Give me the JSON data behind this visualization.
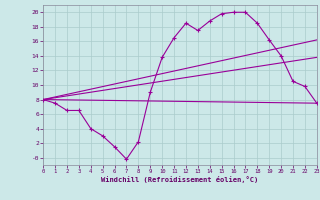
{
  "xlabel": "Windchill (Refroidissement éolien,°C)",
  "bg_color": "#cce8e8",
  "line_color": "#990099",
  "grid_color": "#aacccc",
  "xlim": [
    0,
    23
  ],
  "ylim": [
    -1,
    21
  ],
  "xticks": [
    0,
    1,
    2,
    3,
    4,
    5,
    6,
    7,
    8,
    9,
    10,
    11,
    12,
    13,
    14,
    15,
    16,
    17,
    18,
    19,
    20,
    21,
    22,
    23
  ],
  "yticks": [
    0,
    2,
    4,
    6,
    8,
    10,
    12,
    14,
    16,
    18,
    20
  ],
  "ytick_labels": [
    "-0",
    "2",
    "4",
    "6",
    "8",
    "10",
    "12",
    "14",
    "16",
    "18",
    "20"
  ],
  "line1_x": [
    0,
    1,
    2,
    3,
    4,
    5,
    6,
    7,
    8,
    9,
    10,
    11,
    12,
    13,
    14,
    15,
    16,
    17,
    18,
    19,
    20,
    21,
    22,
    23
  ],
  "line1_y": [
    8,
    7.5,
    6.5,
    6.5,
    4.0,
    3.0,
    1.5,
    -0.2,
    2.2,
    9.0,
    13.8,
    16.5,
    18.5,
    17.5,
    18.8,
    19.8,
    20.0,
    20.0,
    18.5,
    16.2,
    14.0,
    10.5,
    9.8,
    7.5
  ],
  "line2_x": [
    0,
    23
  ],
  "line2_y": [
    8.0,
    7.5
  ],
  "line3_x": [
    0,
    23
  ],
  "line3_y": [
    8.0,
    16.2
  ],
  "line4_x": [
    0,
    23
  ],
  "line4_y": [
    8.0,
    13.8
  ]
}
